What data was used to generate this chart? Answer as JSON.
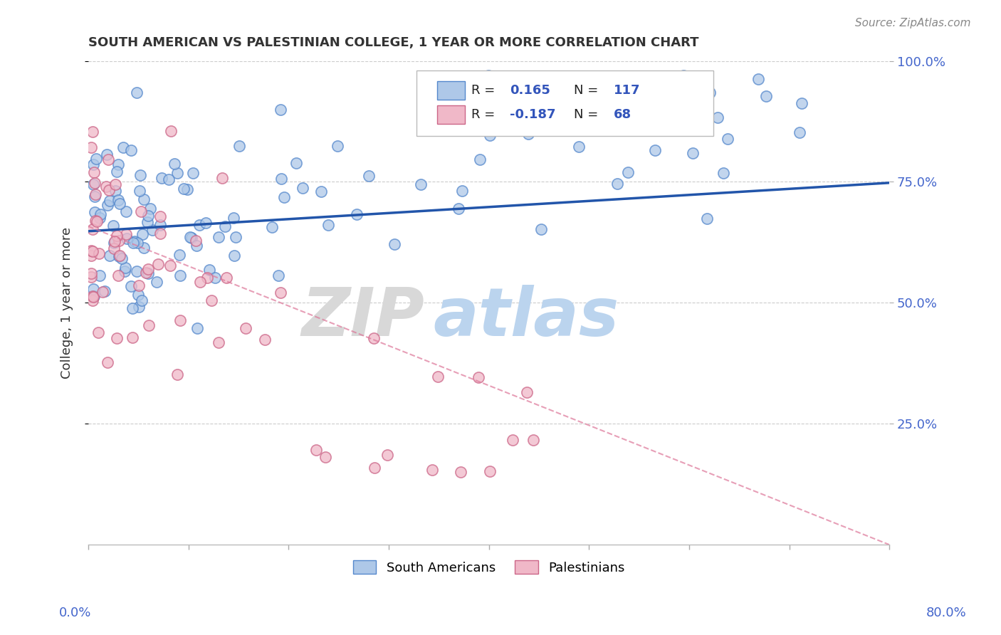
{
  "title": "SOUTH AMERICAN VS PALESTINIAN COLLEGE, 1 YEAR OR MORE CORRELATION CHART",
  "source_text": "Source: ZipAtlas.com",
  "ylabel": "College, 1 year or more",
  "xmin": 0.0,
  "xmax": 0.8,
  "ymin": 0.0,
  "ymax": 1.0,
  "yticks": [
    0.25,
    0.5,
    0.75,
    1.0
  ],
  "ytick_labels": [
    "25.0%",
    "50.0%",
    "75.0%",
    "100.0%"
  ],
  "series": [
    {
      "label": "South Americans",
      "color": "#aec8e8",
      "edge_color": "#5588cc",
      "R": 0.165,
      "N": 117,
      "trend_color": "#2255aa",
      "trend_style": "solid",
      "trend_x": [
        0.0,
        0.8
      ],
      "trend_y": [
        0.648,
        0.748
      ]
    },
    {
      "label": "Palestinians",
      "color": "#f0b8c8",
      "edge_color": "#cc6688",
      "R": -0.187,
      "N": 68,
      "trend_color": "#dd7799",
      "trend_style": "dashed",
      "trend_x": [
        0.0,
        0.8
      ],
      "trend_y": [
        0.658,
        0.0
      ]
    }
  ],
  "watermark_zip": "ZIP",
  "watermark_atlas": "atlas",
  "watermark_zip_color": "#cccccc",
  "watermark_atlas_color": "#aaccee",
  "background_color": "#ffffff",
  "grid_color": "#cccccc",
  "legend_text_color": "#222222",
  "legend_value_color": "#3355bb",
  "legend_N_color": "#3355bb"
}
